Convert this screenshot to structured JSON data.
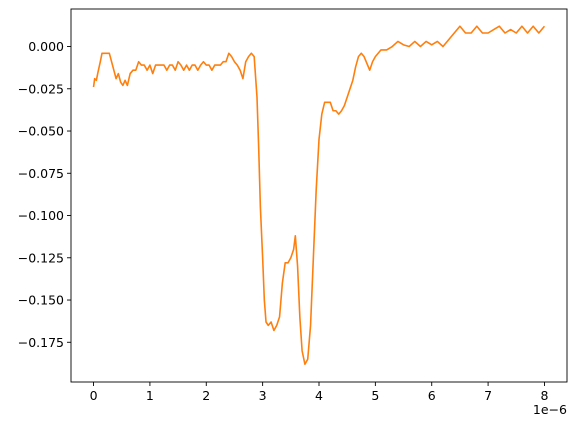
{
  "chart_data": {
    "type": "line",
    "title": "",
    "xlabel": "",
    "ylabel": "",
    "x_offset_text": "1e−6",
    "xlim": [
      -0.4,
      8.4
    ],
    "ylim": [
      -0.1985,
      0.0222
    ],
    "x_ticks": [
      {
        "value": 0,
        "label": "0"
      },
      {
        "value": 1,
        "label": "1"
      },
      {
        "value": 2,
        "label": "2"
      },
      {
        "value": 3,
        "label": "3"
      },
      {
        "value": 4,
        "label": "4"
      },
      {
        "value": 5,
        "label": "5"
      },
      {
        "value": 6,
        "label": "6"
      },
      {
        "value": 7,
        "label": "7"
      },
      {
        "value": 8,
        "label": "8"
      }
    ],
    "y_ticks": [
      {
        "value": 0.0,
        "label": "0.000"
      },
      {
        "value": -0.025,
        "label": "−0.025"
      },
      {
        "value": -0.05,
        "label": "−0.050"
      },
      {
        "value": -0.075,
        "label": "−0.075"
      },
      {
        "value": -0.1,
        "label": "−0.100"
      },
      {
        "value": -0.125,
        "label": "−0.125"
      },
      {
        "value": -0.15,
        "label": "−0.150"
      },
      {
        "value": -0.175,
        "label": "−0.175"
      }
    ],
    "grid": false,
    "series": [
      {
        "color": "#ff7f0e",
        "x": [
          0.0,
          0.02,
          0.05,
          0.08,
          0.12,
          0.15,
          0.2,
          0.25,
          0.28,
          0.32,
          0.36,
          0.4,
          0.44,
          0.48,
          0.52,
          0.56,
          0.6,
          0.65,
          0.7,
          0.75,
          0.8,
          0.85,
          0.9,
          0.95,
          1.0,
          1.05,
          1.1,
          1.15,
          1.2,
          1.25,
          1.3,
          1.35,
          1.4,
          1.45,
          1.5,
          1.55,
          1.6,
          1.65,
          1.7,
          1.75,
          1.8,
          1.85,
          1.9,
          1.95,
          2.0,
          2.05,
          2.1,
          2.15,
          2.2,
          2.25,
          2.3,
          2.35,
          2.4,
          2.45,
          2.5,
          2.55,
          2.6,
          2.65,
          2.7,
          2.75,
          2.8,
          2.85,
          2.9,
          2.93,
          2.96,
          3.0,
          3.03,
          3.06,
          3.1,
          3.15,
          3.2,
          3.25,
          3.3,
          3.35,
          3.4,
          3.45,
          3.5,
          3.55,
          3.58,
          3.62,
          3.66,
          3.7,
          3.75,
          3.8,
          3.85,
          3.9,
          3.95,
          4.0,
          4.05,
          4.1,
          4.15,
          4.2,
          4.25,
          4.3,
          4.35,
          4.4,
          4.45,
          4.5,
          4.55,
          4.6,
          4.65,
          4.7,
          4.75,
          4.8,
          4.85,
          4.9,
          4.95,
          5.0,
          5.05,
          5.1,
          5.2,
          5.3,
          5.4,
          5.5,
          5.6,
          5.7,
          5.8,
          5.9,
          6.0,
          6.1,
          6.2,
          6.3,
          6.4,
          6.5,
          6.6,
          6.7,
          6.8,
          6.9,
          7.0,
          7.1,
          7.2,
          7.3,
          7.4,
          7.5,
          7.6,
          7.7,
          7.8,
          7.9,
          8.0
        ],
        "y": [
          -0.024,
          -0.019,
          -0.02,
          -0.015,
          -0.009,
          -0.004,
          -0.004,
          -0.004,
          -0.004,
          -0.009,
          -0.014,
          -0.019,
          -0.016,
          -0.021,
          -0.023,
          -0.02,
          -0.023,
          -0.016,
          -0.014,
          -0.014,
          -0.009,
          -0.011,
          -0.011,
          -0.014,
          -0.011,
          -0.016,
          -0.011,
          -0.011,
          -0.011,
          -0.011,
          -0.014,
          -0.011,
          -0.011,
          -0.014,
          -0.009,
          -0.011,
          -0.014,
          -0.011,
          -0.014,
          -0.011,
          -0.011,
          -0.014,
          -0.011,
          -0.009,
          -0.011,
          -0.011,
          -0.014,
          -0.011,
          -0.011,
          -0.011,
          -0.009,
          -0.009,
          -0.004,
          -0.006,
          -0.009,
          -0.011,
          -0.014,
          -0.019,
          -0.009,
          -0.006,
          -0.004,
          -0.006,
          -0.03,
          -0.06,
          -0.095,
          -0.125,
          -0.15,
          -0.163,
          -0.165,
          -0.163,
          -0.168,
          -0.165,
          -0.16,
          -0.14,
          -0.128,
          -0.128,
          -0.125,
          -0.12,
          -0.112,
          -0.13,
          -0.16,
          -0.18,
          -0.188,
          -0.185,
          -0.165,
          -0.125,
          -0.085,
          -0.055,
          -0.04,
          -0.033,
          -0.033,
          -0.033,
          -0.038,
          -0.038,
          -0.04,
          -0.038,
          -0.035,
          -0.03,
          -0.025,
          -0.02,
          -0.012,
          -0.006,
          -0.004,
          -0.006,
          -0.01,
          -0.014,
          -0.009,
          -0.006,
          -0.004,
          -0.002,
          -0.002,
          0.0,
          0.003,
          0.001,
          0.0,
          0.003,
          0.0,
          0.003,
          0.001,
          0.003,
          0.0,
          0.004,
          0.008,
          0.012,
          0.008,
          0.008,
          0.012,
          0.008,
          0.008,
          0.01,
          0.012,
          0.008,
          0.01,
          0.008,
          0.012,
          0.008,
          0.012,
          0.008,
          0.012
        ]
      }
    ]
  }
}
